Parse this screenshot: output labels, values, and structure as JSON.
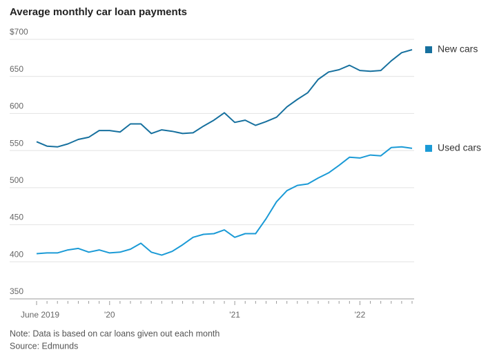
{
  "chart_data": {
    "type": "line",
    "title": "Average monthly car loan payments",
    "categories": [
      "June 2019",
      null,
      null,
      null,
      null,
      null,
      null,
      "'20",
      null,
      null,
      null,
      null,
      null,
      null,
      null,
      null,
      null,
      null,
      null,
      "'21",
      null,
      null,
      null,
      null,
      null,
      null,
      null,
      null,
      null,
      null,
      null,
      "'22",
      null,
      null,
      null,
      null,
      null
    ],
    "series": [
      {
        "name": "New cars",
        "color": "#16709e",
        "values": [
          562,
          556,
          555,
          559,
          565,
          568,
          577,
          577,
          575,
          586,
          586,
          573,
          578,
          576,
          573,
          574,
          583,
          591,
          601,
          588,
          591,
          584,
          589,
          595,
          609,
          619,
          628,
          646,
          656,
          659,
          665,
          658,
          657,
          658,
          671,
          682,
          686
        ]
      },
      {
        "name": "Used cars",
        "color": "#1a9ad6",
        "values": [
          411,
          412,
          412,
          416,
          418,
          413,
          416,
          412,
          413,
          417,
          425,
          413,
          409,
          414,
          423,
          433,
          437,
          438,
          443,
          433,
          438,
          438,
          458,
          481,
          496,
          503,
          505,
          513,
          520,
          530,
          541,
          540,
          544,
          543,
          554,
          555,
          553
        ]
      }
    ],
    "ylim": [
      350,
      700
    ],
    "yticks": [
      350,
      400,
      450,
      500,
      550,
      600,
      650,
      {
        "value": 700,
        "label": "$700"
      }
    ],
    "grid": true,
    "note": "Note: Data is based on car loans given out each month",
    "source": "Source: Edmunds"
  }
}
